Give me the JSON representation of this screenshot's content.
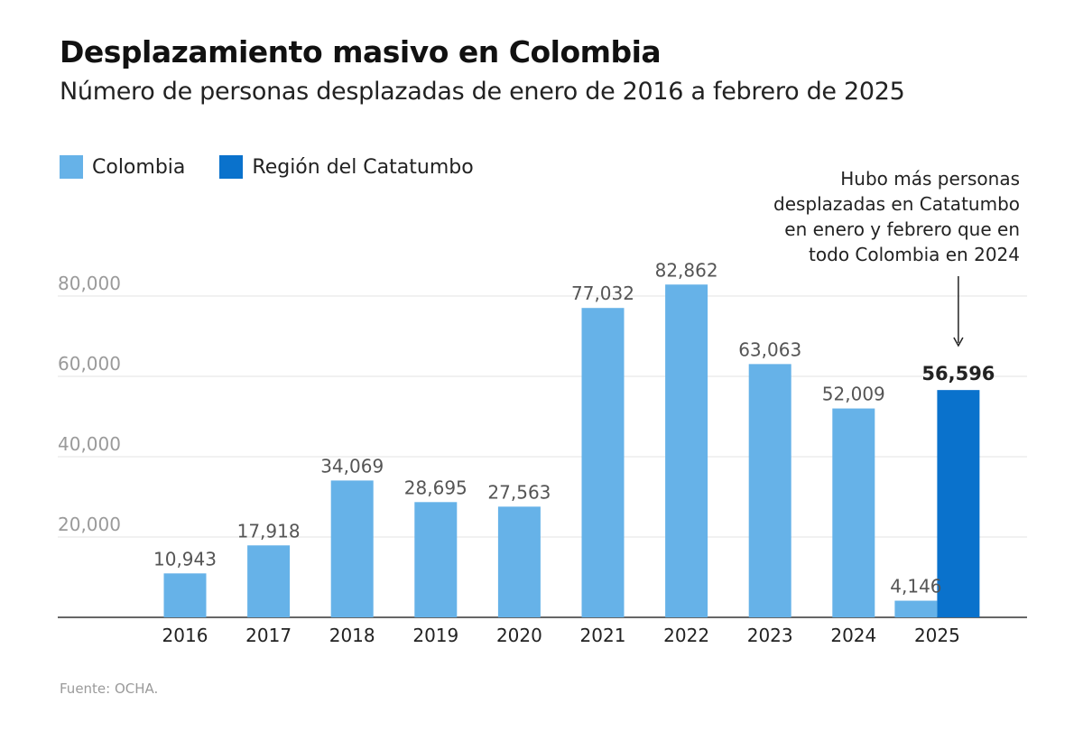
{
  "title": "Desplazamiento masivo en Colombia",
  "subtitle": "Número de personas desplazadas de enero de 2016 a febrero de 2025",
  "legend": [
    {
      "label": "Colombia",
      "color": "#66b2e8"
    },
    {
      "label": "Región del Catatumbo",
      "color": "#0a72cc"
    }
  ],
  "annotation": "Hubo más personas desplazadas en Catatumbo en enero y febrero que en todo Colombia en 2024",
  "source": "Fuente: OCHA.",
  "chart_data": {
    "type": "bar",
    "categories": [
      "2016",
      "2017",
      "2018",
      "2019",
      "2020",
      "2021",
      "2022",
      "2023",
      "2024",
      "2025"
    ],
    "series": [
      {
        "name": "Colombia",
        "color": "#66b2e8",
        "values": [
          10943,
          17918,
          34069,
          28695,
          27563,
          77032,
          82862,
          63063,
          52009,
          4146
        ],
        "labels": [
          "10,943",
          "17,918",
          "34,069",
          "28,695",
          "27,563",
          "77,032",
          "82,862",
          "63,063",
          "52,009",
          "4,146"
        ]
      },
      {
        "name": "Región del Catatumbo",
        "color": "#0a72cc",
        "values": [
          null,
          null,
          null,
          null,
          null,
          null,
          null,
          null,
          null,
          56596
        ],
        "labels": [
          "",
          "",
          "",
          "",
          "",
          "",
          "",
          "",
          "",
          "56,596"
        ]
      }
    ],
    "yticks": [
      20000,
      40000,
      60000,
      80000
    ],
    "ytick_labels": [
      "20,000",
      "40,000",
      "60,000",
      "80,000"
    ],
    "ylim": [
      0,
      80000
    ],
    "grid": true
  }
}
